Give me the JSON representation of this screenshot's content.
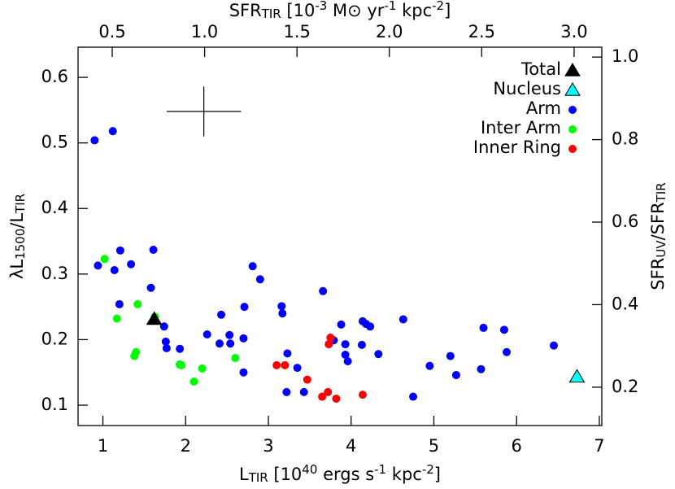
{
  "chart_data": {
    "type": "scatter",
    "xlabel": [
      {
        "text": "L"
      },
      {
        "text": "TIR",
        "sub": true
      },
      {
        "text": " [10"
      },
      {
        "text": "40",
        "sup": true
      },
      {
        "text": " ergs s"
      },
      {
        "text": "-1",
        "sup": true
      },
      {
        "text": " kpc"
      },
      {
        "text": "-2",
        "sup": true
      },
      {
        "text": "]"
      }
    ],
    "x2label": [
      {
        "text": "SFR"
      },
      {
        "text": "TIR",
        "sub": true
      },
      {
        "text": " [10"
      },
      {
        "text": "-3",
        "sup": true
      },
      {
        "text": " M⊙ yr"
      },
      {
        "text": "-1",
        "sup": true
      },
      {
        "text": " kpc"
      },
      {
        "text": "-2",
        "sup": true
      },
      {
        "text": "]"
      }
    ],
    "ylabel": [
      {
        "text": "λL"
      },
      {
        "text": "1500",
        "sub": true
      },
      {
        "text": "/L"
      },
      {
        "text": "TIR",
        "sub": true
      }
    ],
    "y2label": [
      {
        "text": "SFR"
      },
      {
        "text": "UV",
        "sub": true
      },
      {
        "text": "/SFR"
      },
      {
        "text": "TIR",
        "sub": true
      }
    ],
    "xlim": [
      0.7,
      7.03
    ],
    "xticks": [
      1,
      2,
      3,
      4,
      5,
      6,
      7
    ],
    "x2lim": [
      0.315,
      3.15
    ],
    "x2ticks": [
      0.5,
      {
        "value": 1,
        "label": "1.0"
      },
      1.5,
      {
        "value": 2,
        "label": "2.0"
      },
      2.5,
      {
        "value": 3,
        "label": "3.0"
      }
    ],
    "ylim": [
      0.069,
      0.646
    ],
    "yticks": [
      0.1,
      0.2,
      0.3,
      0.4,
      0.5,
      0.6
    ],
    "y2lim": [
      0.107,
      1.024
    ],
    "y2ticks": [
      0.2,
      0.4,
      0.6,
      0.8,
      {
        "value": 1,
        "label": "1.0"
      }
    ],
    "legend": "upper right",
    "error_bar": {
      "x": 2.22,
      "y": 0.548,
      "xerr": 0.45,
      "yerr": 0.038
    },
    "series": [
      {
        "name": "Total",
        "marker": "triangle",
        "color": "#000000",
        "x": [
          1.62
        ],
        "values": [
          0.231
        ]
      },
      {
        "name": "Nucleus",
        "marker": "triangle",
        "color": "#00ffff",
        "x": [
          6.73
        ],
        "values": [
          0.143
        ]
      },
      {
        "name": "Arm",
        "marker": "circle",
        "color": "#0000ff",
        "x": [
          0.9,
          1.12,
          0.94,
          1.14,
          1.21,
          1.34,
          1.61,
          1.2,
          1.58,
          1.74,
          1.76,
          1.77,
          1.93,
          1.93,
          2.26,
          2.43,
          2.41,
          2.53,
          2.54,
          2.7,
          2.7,
          2.71,
          2.81,
          2.9,
          3.16,
          3.17,
          3.23,
          3.22,
          3.35,
          3.43,
          3.66,
          3.79,
          3.88,
          3.93,
          3.93,
          3.96,
          4.13,
          4.14,
          4.18,
          4.23,
          4.33,
          4.63,
          4.75,
          4.95,
          5.2,
          5.27,
          5.6,
          5.57,
          5.85,
          5.88,
          6.45
        ],
        "values": [
          0.504,
          0.518,
          0.313,
          0.306,
          0.336,
          0.315,
          0.337,
          0.254,
          0.279,
          0.22,
          0.197,
          0.187,
          0.186,
          0.162,
          0.208,
          0.238,
          0.194,
          0.207,
          0.194,
          0.202,
          0.15,
          0.25,
          0.312,
          0.292,
          0.251,
          0.24,
          0.179,
          0.12,
          0.157,
          0.12,
          0.274,
          0.199,
          0.223,
          0.177,
          0.193,
          0.167,
          0.192,
          0.228,
          0.224,
          0.22,
          0.178,
          0.231,
          0.113,
          0.16,
          0.175,
          0.146,
          0.218,
          0.155,
          0.215,
          0.181,
          0.191
        ]
      },
      {
        "name": "Inter Arm",
        "marker": "circle",
        "color": "#00ff00",
        "x": [
          1.02,
          1.17,
          1.42,
          1.38,
          1.4,
          1.63,
          1.93,
          1.95,
          2.1,
          2.2,
          2.6
        ],
        "values": [
          0.323,
          0.232,
          0.254,
          0.175,
          0.181,
          0.235,
          0.162,
          0.161,
          0.136,
          0.156,
          0.172
        ]
      },
      {
        "name": "Inner Ring",
        "marker": "circle",
        "color": "#ff0000",
        "x": [
          3.1,
          3.2,
          3.47,
          3.75,
          3.73,
          3.65,
          3.72,
          3.82,
          4.14
        ],
        "values": [
          0.161,
          0.161,
          0.139,
          0.203,
          0.193,
          0.113,
          0.12,
          0.11,
          0.116
        ]
      }
    ]
  }
}
